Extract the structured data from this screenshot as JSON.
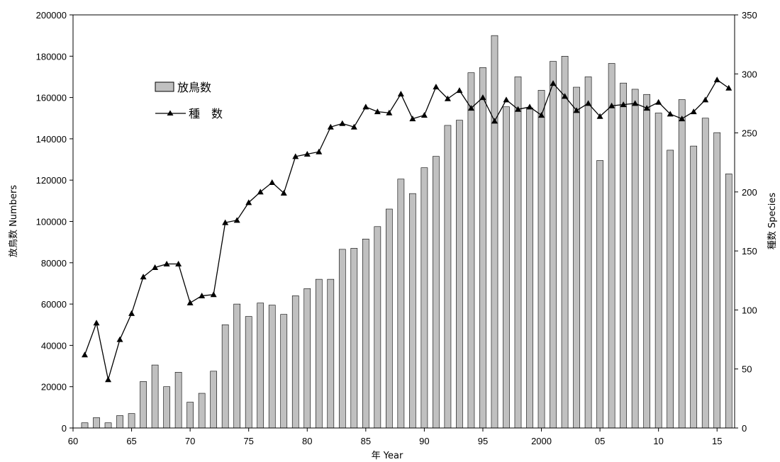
{
  "chart_data": {
    "type": "bar",
    "x_tick_labels": [
      "60",
      "65",
      "70",
      "75",
      "80",
      "85",
      "90",
      "95",
      "2000",
      "05",
      "10",
      "15"
    ],
    "x_tick_values": [
      1960,
      1965,
      1970,
      1975,
      1980,
      1985,
      1990,
      1995,
      2000,
      2005,
      2010,
      2015
    ],
    "xlim": [
      1960,
      2016.5
    ],
    "xlabel": "年 Year",
    "ylabel_left": "放鳥数 Numbers",
    "ylabel_right": "種数 Species",
    "ylim_left": [
      0,
      200000
    ],
    "ylim_right": [
      0,
      350
    ],
    "y_ticks_left": [
      0,
      20000,
      40000,
      60000,
      80000,
      100000,
      120000,
      140000,
      160000,
      180000,
      200000
    ],
    "y_ticks_right": [
      0,
      50,
      100,
      150,
      200,
      250,
      300,
      350
    ],
    "grid": false,
    "legend_position": "upper-left",
    "years": [
      1961,
      1962,
      1963,
      1964,
      1965,
      1966,
      1967,
      1968,
      1969,
      1970,
      1971,
      1972,
      1973,
      1974,
      1975,
      1976,
      1977,
      1978,
      1979,
      1980,
      1981,
      1982,
      1983,
      1984,
      1985,
      1986,
      1987,
      1988,
      1989,
      1990,
      1991,
      1992,
      1993,
      1994,
      1995,
      1996,
      1997,
      1998,
      1999,
      2000,
      2001,
      2002,
      2003,
      2004,
      2005,
      2006,
      2007,
      2008,
      2009,
      2010,
      2011,
      2012,
      2013,
      2014,
      2015,
      2016
    ],
    "series": [
      {
        "name": "放鳥数",
        "type": "bar",
        "axis": "left",
        "color": "#c0c0c0",
        "values": [
          2500,
          5000,
          2500,
          6000,
          7000,
          22500,
          30500,
          20000,
          27000,
          12500,
          16800,
          27500,
          50000,
          60000,
          54000,
          60500,
          59500,
          55000,
          64000,
          67500,
          72000,
          72000,
          86500,
          87000,
          91500,
          97500,
          106000,
          120500,
          113500,
          126000,
          131500,
          146500,
          149000,
          172000,
          174500,
          190000,
          155500,
          170000,
          155000,
          163500,
          177500,
          180000,
          165000,
          170000,
          129500,
          176500,
          167000,
          164000,
          161500,
          152500,
          134500,
          159000,
          136500,
          150000,
          143000,
          123000
        ]
      },
      {
        "name": "種　数",
        "type": "line",
        "axis": "right",
        "marker": "triangle",
        "color": "#000000",
        "values": [
          62,
          89,
          41,
          75,
          97,
          128,
          136,
          139,
          139,
          106,
          112,
          113,
          174,
          176,
          191,
          200,
          208,
          199,
          230,
          232,
          234,
          255,
          258,
          255,
          272,
          268,
          267,
          283,
          262,
          265,
          289,
          279,
          286,
          271,
          280,
          260,
          278,
          270,
          272,
          265,
          292,
          281,
          269,
          275,
          264,
          273,
          274,
          275,
          271,
          276,
          266,
          262,
          268,
          278,
          295,
          288
        ]
      }
    ]
  }
}
